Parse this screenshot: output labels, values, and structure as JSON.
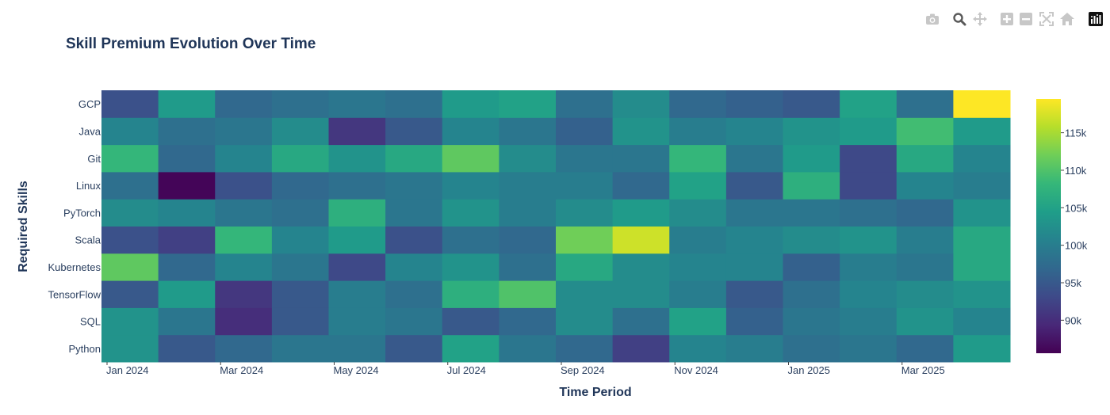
{
  "toolbar": {
    "icons": [
      "camera-icon",
      "zoom-icon",
      "pan-icon",
      "zoom-in-icon",
      "zoom-out-icon",
      "autoscale-icon",
      "home-icon",
      "plotly-logo-icon"
    ],
    "icon_color": "#c7c7c7",
    "active_icon_color": "#5a5a5a"
  },
  "chart_data": {
    "type": "heatmap",
    "title": "Skill Premium Evolution Over Time",
    "xlabel": "Time Period",
    "ylabel": "Required Skills",
    "colorscale": "Viridis",
    "zlim": [
      85600,
      119500
    ],
    "x": [
      "2024-01",
      "2024-02",
      "2024-03",
      "2024-04",
      "2024-05",
      "2024-06",
      "2024-07",
      "2024-08",
      "2024-09",
      "2024-10",
      "2024-11",
      "2024-12",
      "2025-01",
      "2025-02",
      "2025-03",
      "2025-04"
    ],
    "x_tick_labels": [
      "Jan 2024",
      "Mar 2024",
      "May 2024",
      "Jul 2024",
      "Sep 2024",
      "Nov 2024",
      "Jan 2025",
      "Mar 2025"
    ],
    "y": [
      "Python",
      "SQL",
      "TensorFlow",
      "Kubernetes",
      "Scala",
      "PyTorch",
      "Linux",
      "Git",
      "Java",
      "GCP"
    ],
    "z": [
      [
        103000,
        95000,
        97000,
        99000,
        99000,
        95000,
        105000,
        99000,
        97000,
        92000,
        101000,
        100000,
        98000,
        99000,
        97000,
        104000
      ],
      [
        103000,
        99000,
        90000,
        95000,
        100000,
        99000,
        95000,
        97000,
        102000,
        98000,
        105000,
        96000,
        99000,
        100000,
        103000,
        101000
      ],
      [
        95000,
        104000,
        91000,
        95000,
        100000,
        98000,
        107000,
        110000,
        102000,
        102000,
        100000,
        95000,
        98000,
        101000,
        102000,
        103000
      ],
      [
        111000,
        97000,
        101000,
        99000,
        93000,
        101000,
        103000,
        98000,
        106000,
        102000,
        101000,
        101000,
        96000,
        100000,
        99000,
        106000
      ],
      [
        94000,
        92000,
        108000,
        101000,
        104000,
        94000,
        98000,
        97000,
        112000,
        117000,
        100000,
        101000,
        102000,
        103000,
        100000,
        106000
      ],
      [
        102000,
        101000,
        99000,
        98000,
        107000,
        99000,
        103000,
        100000,
        102000,
        104000,
        102000,
        99000,
        99000,
        98000,
        97000,
        103000
      ],
      [
        98000,
        86000,
        94000,
        97000,
        98000,
        99000,
        101000,
        100000,
        100000,
        97000,
        105000,
        95000,
        107000,
        93000,
        101000,
        100000
      ],
      [
        108000,
        97000,
        101000,
        106000,
        103000,
        106000,
        111000,
        102000,
        99000,
        99000,
        108000,
        99000,
        104000,
        93000,
        106000,
        101000
      ],
      [
        101000,
        98000,
        99000,
        102000,
        91000,
        95000,
        101000,
        99000,
        96000,
        103000,
        100000,
        101000,
        103000,
        104000,
        109000,
        104000
      ],
      [
        94000,
        104000,
        97000,
        98000,
        99000,
        98000,
        104000,
        105000,
        98000,
        102000,
        97000,
        96000,
        95000,
        105000,
        98000,
        119500
      ]
    ],
    "colorbar": {
      "tickvals": [
        90000,
        95000,
        100000,
        105000,
        110000,
        115000
      ],
      "ticktext": [
        "90k",
        "95k",
        "100k",
        "105k",
        "110k",
        "115k"
      ]
    },
    "grid": false,
    "legend": "none",
    "title_color": "#1f3558"
  }
}
